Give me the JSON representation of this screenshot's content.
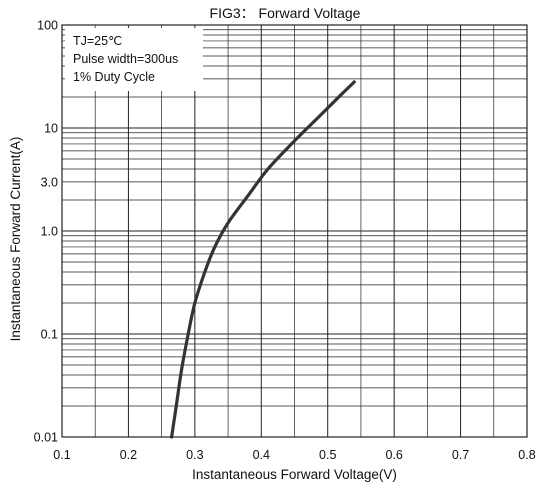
{
  "chart_data": {
    "type": "line",
    "title": "FIG3： Forward Voltage",
    "xlabel": "Instantaneous Forward Voltage(V)",
    "ylabel": "Instantaneous Forward Current(A)",
    "xlim": [
      0.1,
      0.8
    ],
    "ylim": [
      0.01,
      100
    ],
    "yscale": "log",
    "grid": true,
    "x_ticks": [
      0.1,
      0.2,
      0.3,
      0.4,
      0.5,
      0.6,
      0.7,
      0.8
    ],
    "x_tick_labels": [
      "0.1",
      "0.2",
      "0.3",
      "0.4",
      "0.5",
      "0.6",
      "0.7",
      "0.8"
    ],
    "y_ticks": [
      0.01,
      0.1,
      1.0,
      3.0,
      10,
      100
    ],
    "y_tick_labels": [
      "0.01",
      "0.1",
      "1.0",
      "3.0",
      "10",
      "100"
    ],
    "legend": {
      "placement": "top-left",
      "lines": [
        "TJ=25℃",
        "Pulse width=300us",
        "1% Duty Cycle"
      ]
    },
    "series": [
      {
        "x": [
          0.265,
          0.272,
          0.28,
          0.29,
          0.3,
          0.315,
          0.33,
          0.35,
          0.38,
          0.41,
          0.45,
          0.49,
          0.52,
          0.54
        ],
        "y": [
          0.01,
          0.02,
          0.045,
          0.1,
          0.2,
          0.4,
          0.7,
          1.2,
          2.2,
          4.0,
          7.5,
          13.5,
          21,
          28
        ]
      }
    ],
    "colors": {
      "curve": "#333333",
      "grid": "#222222",
      "background": "#ffffff"
    }
  }
}
